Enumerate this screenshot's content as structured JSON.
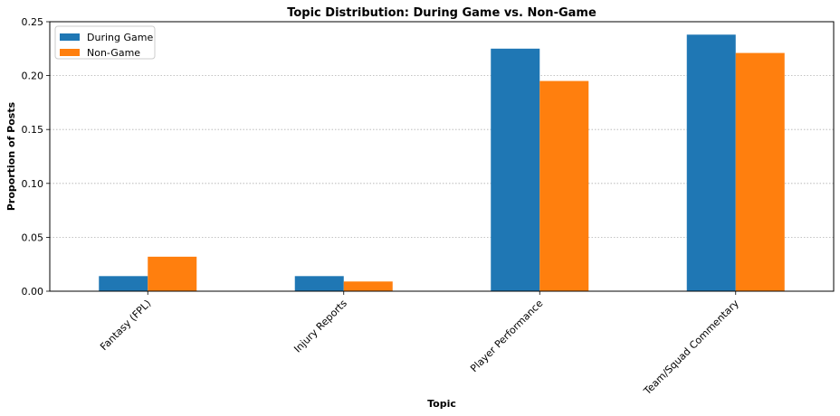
{
  "chart_data": {
    "type": "bar",
    "title": "Topic Distribution: During Game vs. Non-Game",
    "xlabel": "Topic",
    "ylabel": "Proportion of Posts",
    "categories": [
      "Fantasy (FPL)",
      "Injury Reports",
      "Player Performance",
      "Team/Squad Commentary"
    ],
    "series": [
      {
        "name": "During Game",
        "color": "#1f77b4",
        "values": [
          0.014,
          0.014,
          0.225,
          0.238
        ]
      },
      {
        "name": "Non-Game",
        "color": "#ff7f0e",
        "values": [
          0.032,
          0.009,
          0.195,
          0.221
        ]
      }
    ],
    "ylim": [
      0,
      0.25
    ],
    "yticks": [
      "0.00",
      "0.05",
      "0.10",
      "0.15",
      "0.20",
      "0.25"
    ],
    "grid": "y-dotted",
    "legend_position": "top-left",
    "tick_label_rotation": 45
  }
}
